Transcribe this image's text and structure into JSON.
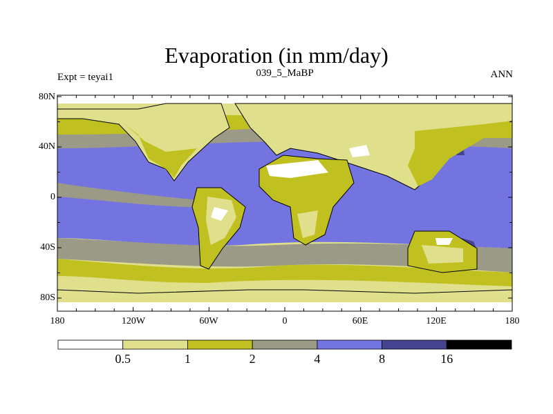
{
  "plot": {
    "title": "Evaporation (in mm/day)",
    "left_string": "Expt = teyai1",
    "center_string": "039_5_MaBP",
    "right_string": "ANN"
  },
  "axes": {
    "lat_labels": [
      "80N",
      "40N",
      "0",
      "40S",
      "80S"
    ],
    "lon_labels": [
      "180",
      "120W",
      "60W",
      "0",
      "60E",
      "120E",
      "180"
    ]
  },
  "colorbar": {
    "levels": [
      "0.5",
      "1",
      "2",
      "4",
      "8",
      "16"
    ],
    "colors": [
      "#ffffff",
      "#e0e08c",
      "#c0c020",
      "#9a9a86",
      "#7474e0",
      "#444490",
      "#000000"
    ]
  }
}
